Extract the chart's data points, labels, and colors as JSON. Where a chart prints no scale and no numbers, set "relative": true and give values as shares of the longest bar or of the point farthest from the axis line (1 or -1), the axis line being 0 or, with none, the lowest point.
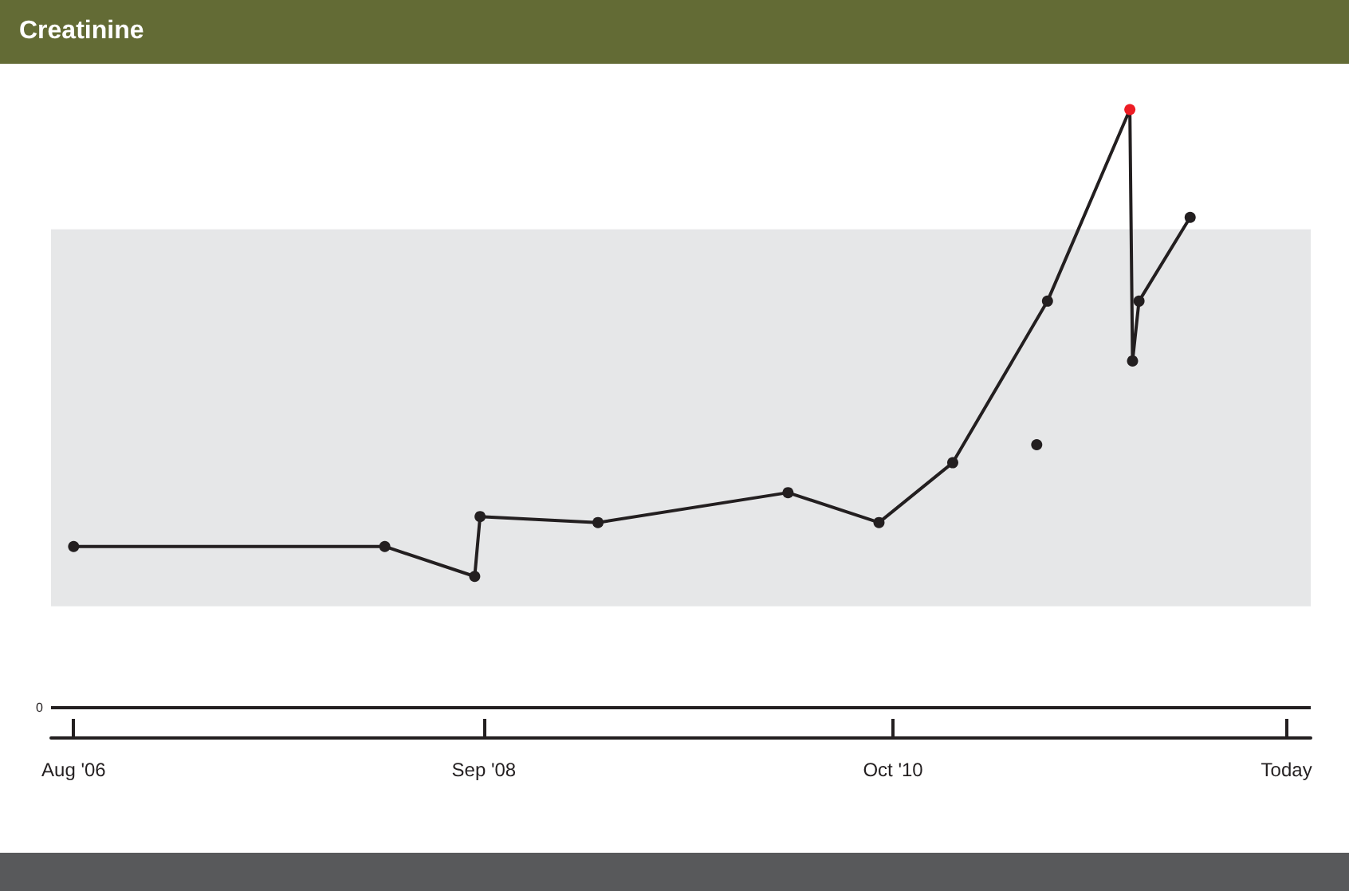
{
  "chart_data": {
    "type": "line",
    "title": "Creatinine",
    "relative": true,
    "xlim": [
      "2006-06-20",
      "2012-11-15"
    ],
    "xticks": [
      {
        "value": "2006-08",
        "label": "Aug '06"
      },
      {
        "value": "2008-09",
        "label": "Sep '08"
      },
      {
        "value": "2010-10",
        "label": "Oct '10"
      },
      {
        "value": "2012-10",
        "label": "Today"
      }
    ],
    "series": [
      {
        "color": "#231f20",
        "x": [
          "2006-08-01",
          "2008-03-01",
          "2008-08-15",
          "2008-08-25",
          "2009-04-01",
          "2010-03-20",
          "2010-09-05",
          "2011-01-20",
          "2011-07-15",
          "2011-12-15",
          "2011-12-20",
          "2012-01-01",
          "2012-04-05"
        ],
        "values": [
          0.27,
          0.27,
          0.22,
          0.32,
          0.31,
          0.36,
          0.31,
          0.41,
          0.68,
          1.0,
          0.58,
          0.68,
          0.82
        ],
        "colors": [
          "#231f20",
          "#231f20",
          "#231f20",
          "#231f20",
          "#231f20",
          "#231f20",
          "#231f20",
          "#231f20",
          "#231f20",
          "#ed1c24",
          "#231f20",
          "#231f20",
          "#231f20"
        ]
      },
      {
        "type": "scatter",
        "color": "#231f20",
        "x": [
          "2011-06-25"
        ],
        "values": [
          0.44
        ]
      }
    ],
    "bands": [
      {
        "axis": "y",
        "from": 0.17,
        "to": 0.8,
        "color": "#e6e7e8"
      }
    ],
    "ref_lines": [
      {
        "axis": "y",
        "value": 0,
        "label": "0",
        "color": "#231f20"
      }
    ],
    "marker": "circle",
    "line_style": "solid",
    "grid": false,
    "tick_labels": "x"
  }
}
